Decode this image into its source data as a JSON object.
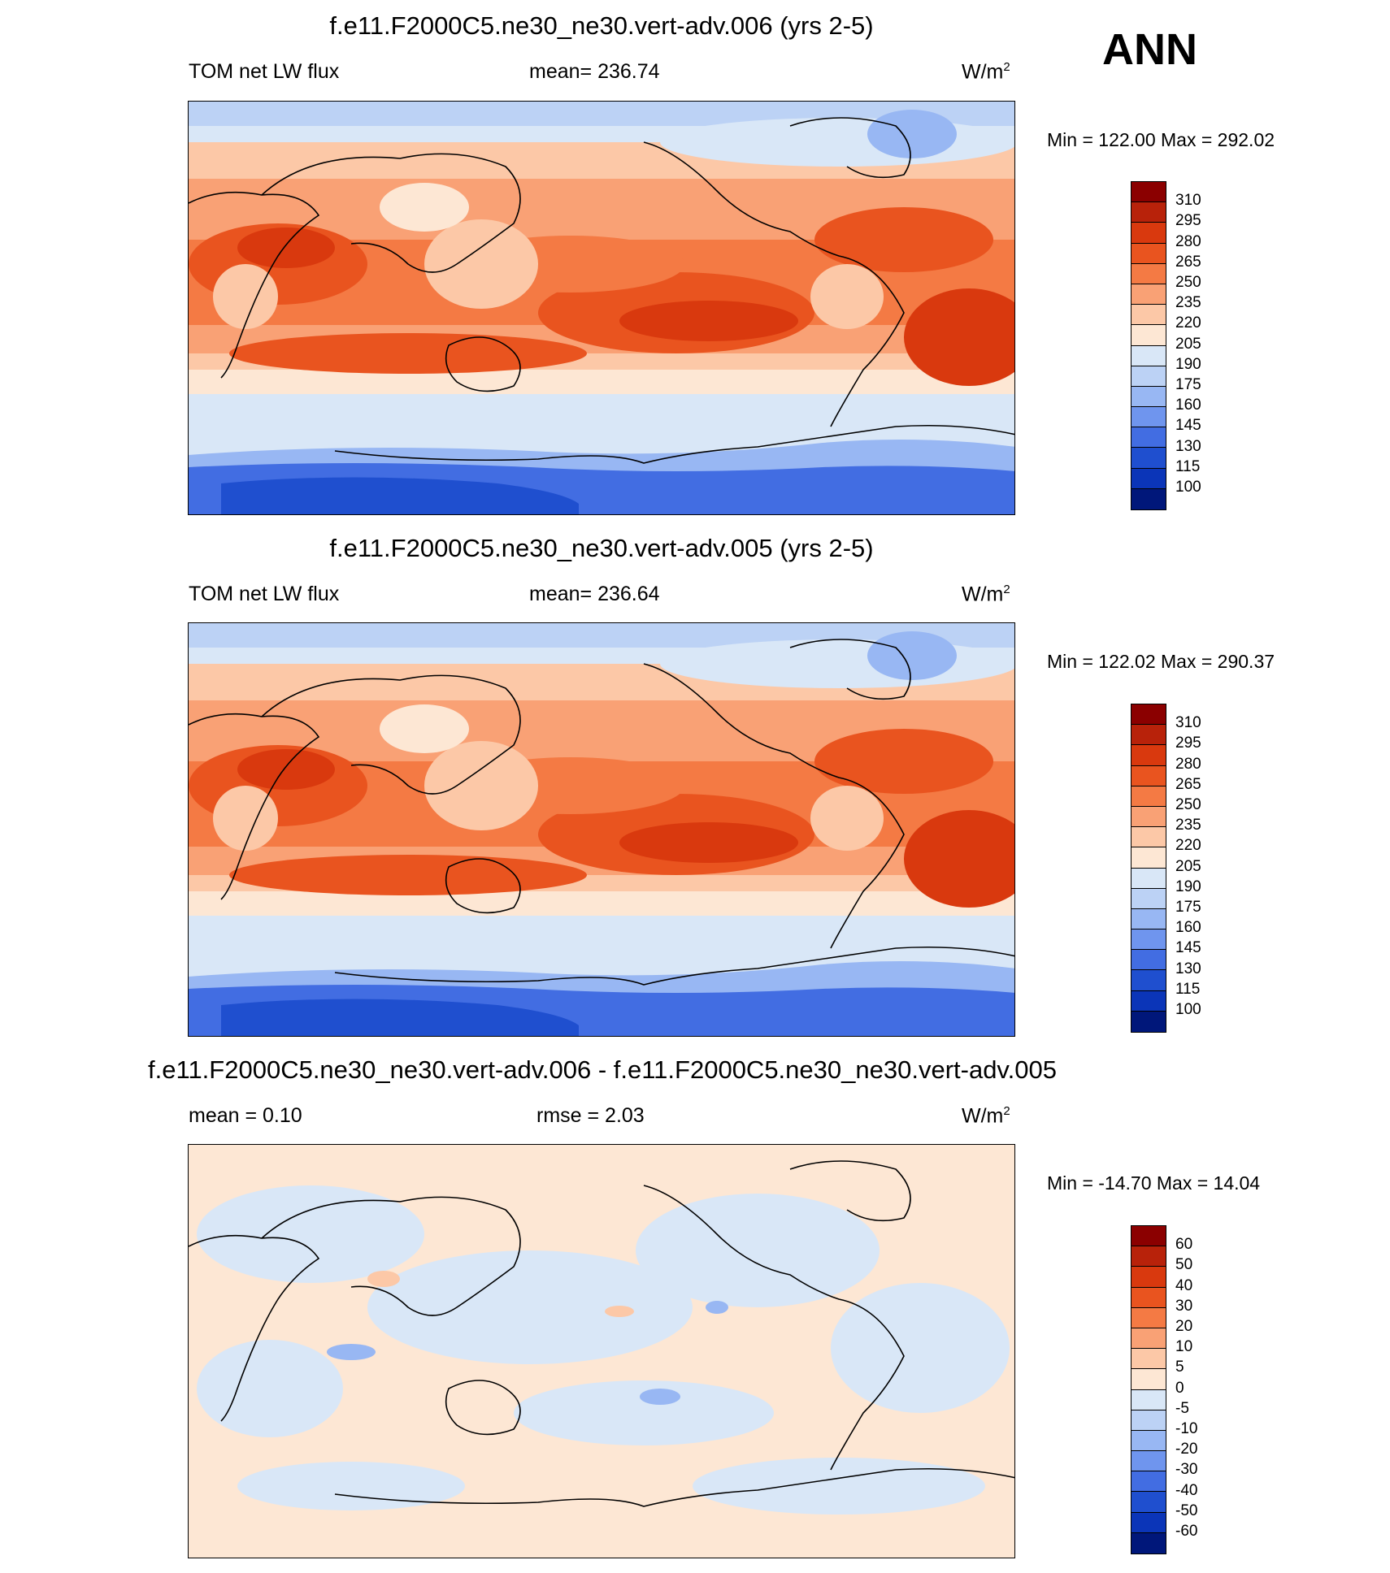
{
  "season": "ANN",
  "panels": [
    {
      "title": "f.e11.F2000C5.ne30_ne30.vert-adv.006 (yrs 2-5)",
      "left": "TOM net LW flux",
      "center": "mean= 236.74",
      "units": "W/m",
      "units_sup": "2",
      "minmax": "Min = 122.00 Max = 292.02",
      "scheme": "abs"
    },
    {
      "title": "f.e11.F2000C5.ne30_ne30.vert-adv.005 (yrs 2-5)",
      "left": "TOM net LW flux",
      "center": "mean= 236.64",
      "units": "W/m",
      "units_sup": "2",
      "minmax": "Min = 122.02 Max = 290.37",
      "scheme": "abs"
    },
    {
      "title": "f.e11.F2000C5.ne30_ne30.vert-adv.006 - f.e11.F2000C5.ne30_ne30.vert-adv.005",
      "left": "mean =   0.10",
      "center": "rmse =   2.03",
      "units": "W/m",
      "units_sup": "2",
      "minmax": "Min = -14.70 Max =  14.04",
      "scheme": "diff"
    }
  ],
  "colorbars": {
    "abs": {
      "labels": [
        "310",
        "295",
        "280",
        "265",
        "250",
        "235",
        "220",
        "205",
        "190",
        "175",
        "160",
        "145",
        "130",
        "115",
        "100"
      ],
      "colors": [
        "#8b0000",
        "#b8220a",
        "#d9390e",
        "#e9541f",
        "#f47a44",
        "#f9a175",
        "#fcc8a7",
        "#fde7d4",
        "#d9e7f7",
        "#bcd2f5",
        "#98b7f3",
        "#6f95ee",
        "#426de2",
        "#1f4fcf",
        "#0b35b8",
        "#00177a"
      ]
    },
    "diff": {
      "labels": [
        "60",
        "50",
        "40",
        "30",
        "20",
        "10",
        "5",
        "0",
        "-5",
        "-10",
        "-20",
        "-30",
        "-40",
        "-50",
        "-60"
      ],
      "colors": [
        "#8b0000",
        "#b8220a",
        "#d9390e",
        "#e9541f",
        "#f47a44",
        "#f9a175",
        "#fcc8a7",
        "#fde7d4",
        "#d9e7f7",
        "#bcd2f5",
        "#98b7f3",
        "#6f95ee",
        "#426de2",
        "#1f4fcf",
        "#0b35b8",
        "#00177a"
      ]
    }
  },
  "chart_data": [
    {
      "type": "heatmap",
      "title": "f.e11.F2000C5.ne30_ne30.vert-adv.006 (yrs 2-5)",
      "variable": "TOM net LW flux",
      "units": "W/m2",
      "mean": 236.74,
      "min": 122.0,
      "max": 292.02,
      "contour_levels": [
        100,
        115,
        130,
        145,
        160,
        175,
        190,
        205,
        220,
        235,
        250,
        265,
        280,
        295,
        310
      ]
    },
    {
      "type": "heatmap",
      "title": "f.e11.F2000C5.ne30_ne30.vert-adv.005 (yrs 2-5)",
      "variable": "TOM net LW flux",
      "units": "W/m2",
      "mean": 236.64,
      "min": 122.02,
      "max": 290.37,
      "contour_levels": [
        100,
        115,
        130,
        145,
        160,
        175,
        190,
        205,
        220,
        235,
        250,
        265,
        280,
        295,
        310
      ]
    },
    {
      "type": "heatmap",
      "title": "f.e11.F2000C5.ne30_ne30.vert-adv.006 - f.e11.F2000C5.ne30_ne30.vert-adv.005",
      "units": "W/m2",
      "mean": 0.1,
      "rmse": 2.03,
      "min": -14.7,
      "max": 14.04,
      "contour_levels": [
        -60,
        -50,
        -40,
        -30,
        -20,
        -10,
        -5,
        0,
        5,
        10,
        20,
        30,
        40,
        50,
        60
      ]
    }
  ]
}
